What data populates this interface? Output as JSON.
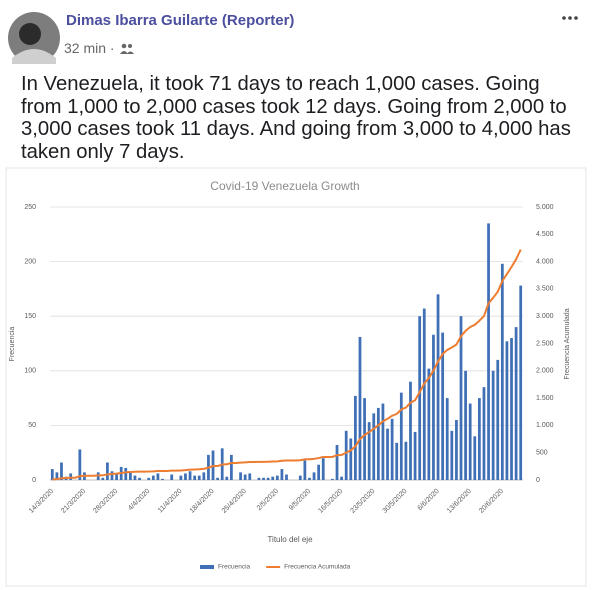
{
  "post": {
    "author": "Dimas Ibarra Guilarte (Reporter)",
    "time": "32 min ·",
    "text": "In Venezuela, it took 71 days to reach 1,000 cases. Going from 1,000 to 2,000 cases took 12 days. Going from 2,000 to 3,000 cases took 11 days. And going from 3,000 to 4,000 has taken only 7 days."
  },
  "chart_data": {
    "type": "combo",
    "title": "Covid-19 Venezuela Growth",
    "x_label": "Titulo del eje",
    "y_label": "Frecuencia",
    "y2_label": "Frecuencia Acumulada",
    "categories": [
      "14/3/2020",
      null,
      null,
      null,
      null,
      null,
      null,
      "21/3/2020",
      null,
      null,
      null,
      null,
      null,
      null,
      "28/3/2020",
      null,
      null,
      null,
      null,
      null,
      null,
      "4/4/2020",
      null,
      null,
      null,
      null,
      null,
      null,
      "11/4/2020",
      null,
      null,
      null,
      null,
      null,
      null,
      "18/4/2020",
      null,
      null,
      null,
      null,
      null,
      null,
      "25/4/2020",
      null,
      null,
      null,
      null,
      null,
      null,
      "2/5/2020",
      null,
      null,
      null,
      null,
      null,
      null,
      "9/5/2020",
      null,
      null,
      null,
      null,
      null,
      null,
      "16/5/2020",
      null,
      null,
      null,
      null,
      null,
      null,
      "23/5/2020",
      null,
      null,
      null,
      null,
      null,
      null,
      "30/5/2020",
      null,
      null,
      null,
      null,
      null,
      null,
      "6/6/2020",
      null,
      null,
      null,
      null,
      null,
      null,
      "13/6/2020",
      null,
      null,
      null,
      null,
      null,
      null,
      "20/6/2020",
      null,
      null,
      null,
      null
    ],
    "series": [
      {
        "name": "Frecuencia",
        "type": "bar",
        "color": "#3f6fb5",
        "values": [
          10,
          7,
          16,
          3,
          6,
          0,
          28,
          7,
          0,
          0,
          7,
          2,
          16,
          8,
          6,
          12,
          11,
          8,
          4,
          2,
          0,
          2,
          4,
          6,
          1,
          0,
          5,
          0,
          4,
          6,
          8,
          4,
          4,
          7,
          23,
          27,
          2,
          29,
          3,
          23,
          0,
          7,
          5,
          6,
          0,
          2,
          2,
          2,
          3,
          4,
          10,
          5,
          0,
          0,
          4,
          18,
          2,
          7,
          14,
          20,
          0,
          1,
          32,
          3,
          45,
          38,
          77,
          131,
          75,
          53,
          61,
          66,
          70,
          47,
          56,
          34,
          80,
          35,
          90,
          44,
          150,
          157,
          102,
          133,
          170,
          135,
          75,
          45,
          55,
          150,
          100,
          70,
          40,
          75,
          85,
          235,
          100,
          110,
          198,
          127,
          130,
          140,
          178
        ]
      },
      {
        "name": "Frecuencia Acumulada",
        "type": "line",
        "axis": "y2",
        "color": "#ed7d31",
        "values": [
          10,
          17,
          33,
          36,
          42,
          42,
          70,
          77,
          77,
          77,
          84,
          86,
          102,
          110,
          116,
          128,
          139,
          147,
          151,
          153,
          153,
          155,
          159,
          165,
          166,
          166,
          171,
          171,
          175,
          181,
          189,
          193,
          197,
          204,
          227,
          254,
          256,
          285,
          288,
          311,
          311,
          318,
          323,
          329,
          329,
          331,
          333,
          335,
          338,
          342,
          352,
          357,
          357,
          357,
          361,
          379,
          381,
          388,
          402,
          422,
          422,
          423,
          455,
          458,
          503,
          541,
          618,
          749,
          824,
          877,
          938,
          1004,
          1074,
          1121,
          1177,
          1211,
          1291,
          1326,
          1416,
          1460,
          1610,
          1767,
          1869,
          2002,
          2172,
          2307,
          2382,
          2427,
          2482,
          2632,
          2732,
          2802,
          2842,
          2917,
          3002,
          3237,
          3337,
          3447,
          3645,
          3772,
          3902,
          4042,
          4220
        ]
      }
    ],
    "ylim": [
      0,
      250
    ],
    "yticks": [
      0,
      50,
      100,
      150,
      200,
      250
    ],
    "y2lim": [
      0,
      5000
    ],
    "y2ticks": [
      0,
      500,
      {
        "value": 1000,
        "label": "1.000"
      },
      {
        "value": 1500,
        "label": "1.500"
      },
      {
        "value": 2000,
        "label": "2.000"
      },
      {
        "value": 2500,
        "label": "2.500"
      },
      {
        "value": 3000,
        "label": "3.000"
      },
      {
        "value": 3500,
        "label": "3.500"
      },
      {
        "value": 4000,
        "label": "4.000"
      },
      {
        "value": 4500,
        "label": "4.500"
      },
      {
        "value": 5000,
        "label": "5.000"
      }
    ],
    "grid": true,
    "legend": "bottom"
  }
}
